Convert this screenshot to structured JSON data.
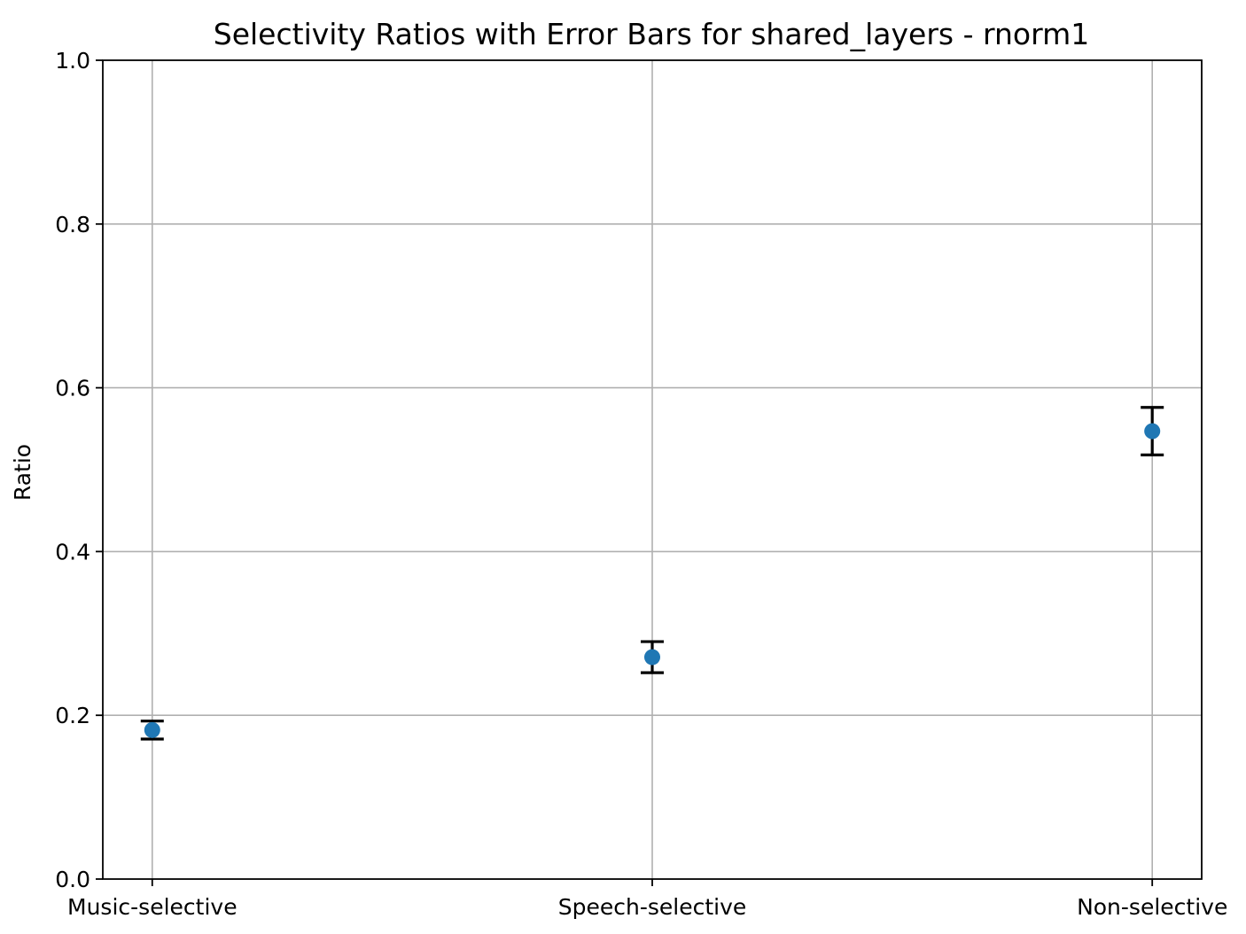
{
  "chart_data": {
    "type": "scatter",
    "title": "Selectivity Ratios with Error Bars for shared_layers - rnorm1",
    "xlabel": "",
    "ylabel": "Ratio",
    "categories": [
      "Music-selective",
      "Speech-selective",
      "Non-selective"
    ],
    "values": [
      0.182,
      0.271,
      0.547
    ],
    "errors": [
      0.011,
      0.019,
      0.029
    ],
    "ylim": [
      0,
      1.0
    ],
    "yticks": [
      0.0,
      0.2,
      0.4,
      0.6,
      0.8,
      1.0
    ],
    "ytick_labels": [
      "0.0",
      "0.2",
      "0.4",
      "0.6",
      "0.8",
      "1.0"
    ],
    "grid": true,
    "marker_color": "#1f77b4",
    "errorbar_color": "#000000",
    "grid_color": "#b0b0b0"
  }
}
